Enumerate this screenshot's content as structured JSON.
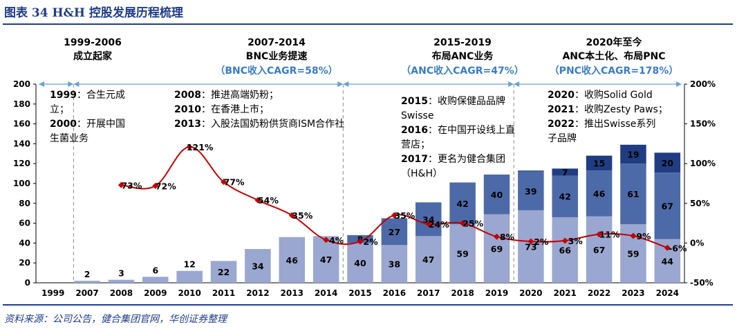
{
  "header": {
    "title": "图表 34  H&H 控股发展历程梳理"
  },
  "source": "资料来源：公司公告，健合集团官网，华创证券整理",
  "phases": [
    {
      "period": "1999-2006",
      "label": "成立起家",
      "cagr": ""
    },
    {
      "period": "2007-2014",
      "label": "BNC业务提速",
      "cagr": "（BNC收入CAGR=58%）"
    },
    {
      "period": "2015-2019",
      "label": "布局ANC业务",
      "cagr": "（ANC收入CAGR=47%）"
    },
    {
      "period": "2020年至今",
      "label": "ANC本土化、布局PNC",
      "cagr": "（PNC收入CAGR=178%）"
    }
  ],
  "milestones": [
    {
      "lines": [
        [
          "1999",
          "：合生元成"
        ],
        [
          "",
          "立；"
        ],
        [
          "2000",
          "：开展中国"
        ],
        [
          "",
          "生菌业务"
        ]
      ]
    },
    {
      "lines": [
        [
          "2008",
          "：推进高端奶粉；"
        ],
        [
          "2010",
          "：在香港上市；"
        ],
        [
          "2013",
          "：入股法国奶粉供货商ISM合作社"
        ]
      ]
    },
    {
      "lines": [
        [
          "2015",
          "：收购保健品品牌"
        ],
        [
          "",
          "Swisse"
        ],
        [
          "2016",
          "：在中国开设线上直"
        ],
        [
          "",
          "营店；"
        ],
        [
          "2017",
          "：更名为健合集团"
        ],
        [
          "",
          "（H&H）"
        ]
      ]
    },
    {
      "lines": [
        [
          "2020",
          "：收购Solid Gold"
        ],
        [
          "2021",
          "：收购Zesty Paws；"
        ],
        [
          "2022",
          "：推出Swisse系列"
        ],
        [
          "",
          "子品牌"
        ]
      ]
    }
  ],
  "chart_data": {
    "type": "bar",
    "stacked": true,
    "categories": [
      "1999",
      "2007",
      "2008",
      "2009",
      "2010",
      "2011",
      "2012",
      "2013",
      "2014",
      "2015",
      "2016",
      "2017",
      "2018",
      "2019",
      "2020",
      "2021",
      "2022",
      "2023",
      "2024"
    ],
    "series": [
      {
        "values": [
          null,
          2,
          3,
          6,
          12,
          22,
          34,
          46,
          47,
          40,
          38,
          47,
          59,
          69,
          73,
          66,
          67,
          59,
          44
        ],
        "labels": [
          "",
          "2",
          "3",
          "6",
          "12",
          "22",
          "34",
          "46",
          "47",
          "40",
          "38",
          "47",
          "59",
          "69",
          "73",
          "66",
          "67",
          "59",
          "44"
        ],
        "color": "#9aa7d0"
      },
      {
        "values": [
          null,
          null,
          null,
          null,
          null,
          null,
          null,
          null,
          null,
          8,
          27,
          34,
          42,
          40,
          39,
          42,
          46,
          61,
          67
        ],
        "labels": [
          "",
          "",
          "",
          "",
          "",
          "",
          "",
          "",
          "",
          "8",
          "27",
          "34",
          "42",
          "40",
          "39",
          "42",
          "46",
          "61",
          "67"
        ],
        "color": "#4d6aa8"
      },
      {
        "values": [
          null,
          null,
          null,
          null,
          null,
          null,
          null,
          null,
          null,
          null,
          null,
          null,
          null,
          null,
          1,
          7,
          15,
          19,
          20
        ],
        "labels": [
          "",
          "",
          "",
          "",
          "",
          "",
          "",
          "",
          "",
          "",
          "",
          "",
          "",
          "",
          "",
          "7",
          "15",
          "19",
          "20"
        ],
        "color": "#203d82"
      },
      {
        "type": "line",
        "axis": "right",
        "color": "#c00000",
        "values": [
          null,
          null,
          73,
          72,
          121,
          77,
          54,
          35,
          4,
          2,
          35,
          24,
          25,
          8,
          2,
          3,
          11,
          9,
          -6
        ],
        "labels": [
          "",
          "",
          "73%",
          "72%",
          "121%",
          "77%",
          "54%",
          "35%",
          "4%",
          "2%",
          "35%",
          "24%",
          "25%",
          "8%",
          "2%",
          "3%",
          "11%",
          "9%",
          "-6%"
        ]
      }
    ],
    "y_left": {
      "min": 0,
      "max": 200,
      "ticks": [
        "0",
        "20",
        "40",
        "60",
        "80",
        "100",
        "120",
        "140",
        "160",
        "180",
        "200"
      ]
    },
    "y_right": {
      "min": -50,
      "max": 200,
      "ticks": [
        "-50%",
        "0%",
        "50%",
        "100%",
        "150%",
        "200%"
      ]
    }
  }
}
